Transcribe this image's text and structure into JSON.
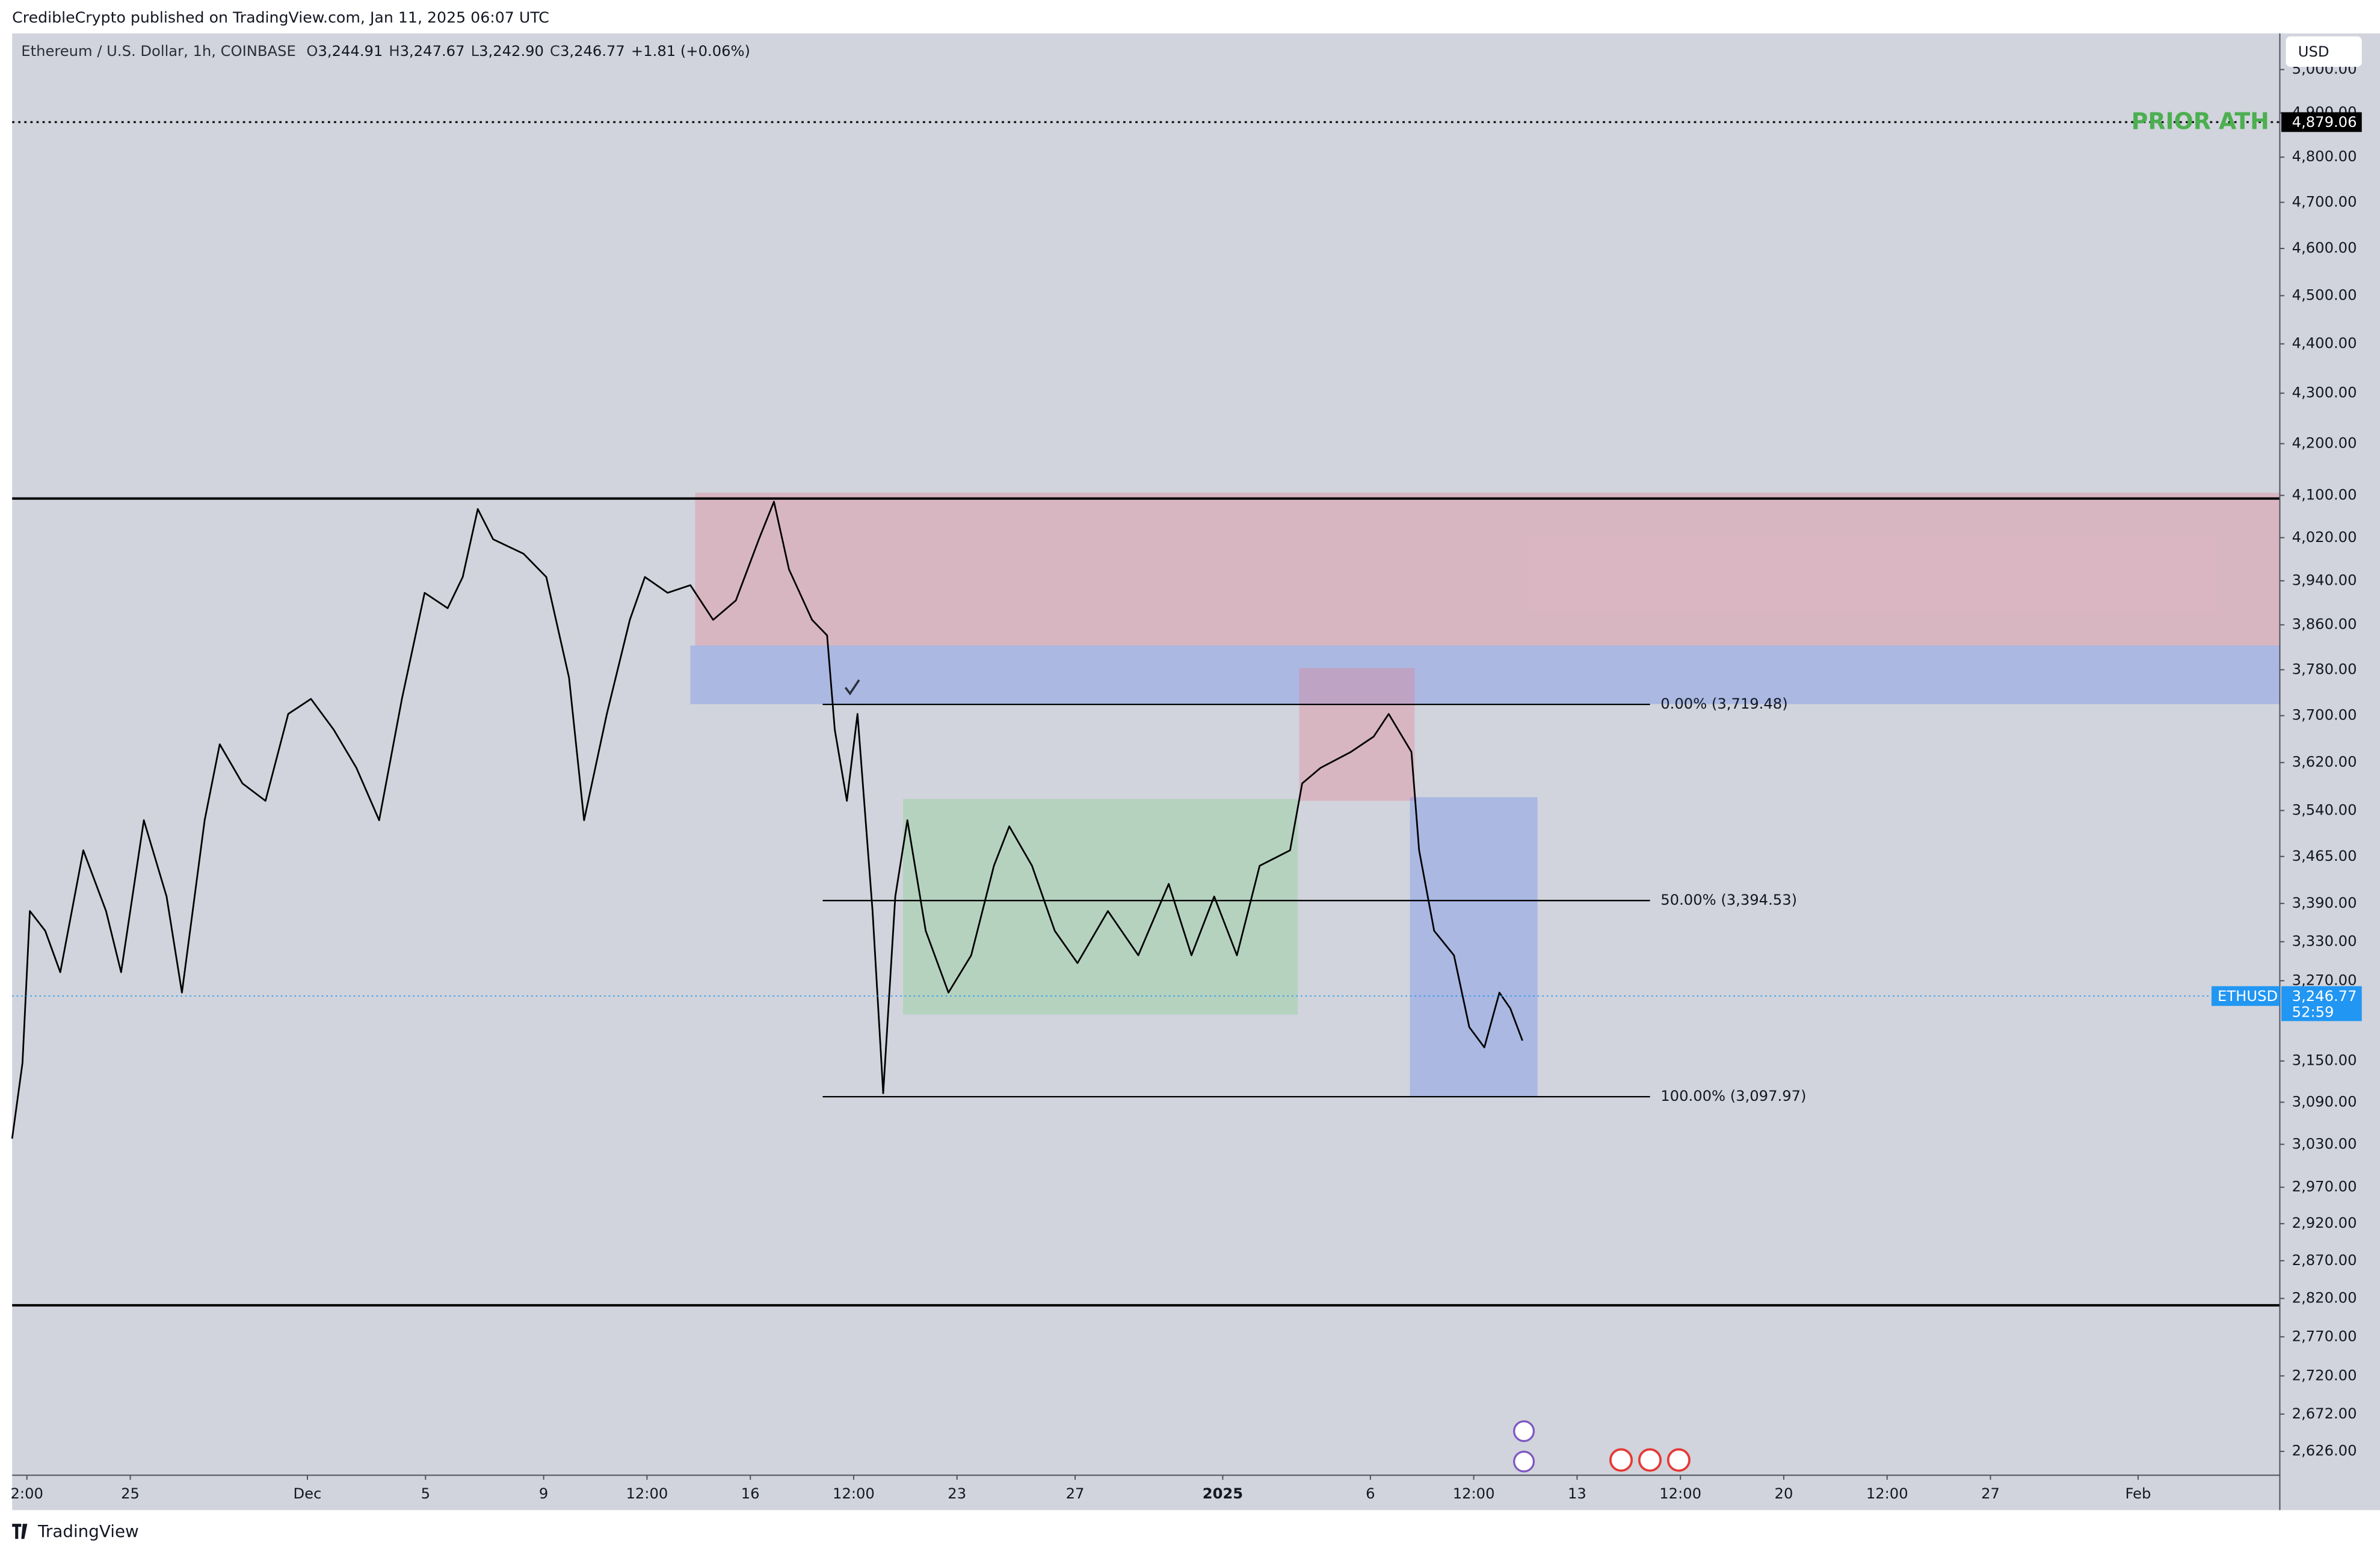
{
  "header": {
    "text": "CredibleCrypto published on TradingView.com, Jan 11, 2025 06:07 UTC"
  },
  "footer": {
    "brand": "TradingView"
  },
  "chart_data": {
    "type": "line",
    "title": "Ethereum / U.S. Dollar, 1h, COINBASE",
    "ohlc": [
      {
        "key": "O",
        "value": 3244.91,
        "label": "3,244.91"
      },
      {
        "key": "H",
        "value": 3247.67,
        "label": "3,247.67"
      },
      {
        "key": "L",
        "value": 3242.9,
        "label": "3,242.90"
      },
      {
        "key": "C",
        "value": 3246.77,
        "label": "3,246.77"
      }
    ],
    "change": {
      "value": 1.81,
      "label": "+1.81 (+0.06%)"
    },
    "currency": "USD",
    "log_scale": true,
    "xlim": [
      21.0,
      97.8
    ],
    "ylim": [
      2597,
      5085
    ],
    "xticks": [
      {
        "value": 21.5,
        "label": "2:00"
      },
      25,
      {
        "value": 31,
        "label": "Dec"
      },
      {
        "value": 35,
        "label": "5"
      },
      {
        "value": 39,
        "label": "9"
      },
      {
        "value": 42.5,
        "label": "12:00"
      },
      {
        "value": 46,
        "label": "16"
      },
      {
        "value": 49.5,
        "label": "12:00"
      },
      {
        "value": 53,
        "label": "23"
      },
      {
        "value": 57,
        "label": "27"
      },
      {
        "value": 62,
        "label": "2025"
      },
      {
        "value": 67,
        "label": "6"
      },
      {
        "value": 70.5,
        "label": "12:00"
      },
      {
        "value": 74,
        "label": "13"
      },
      {
        "value": 77.5,
        "label": "12:00"
      },
      {
        "value": 81,
        "label": "20"
      },
      {
        "value": 84.5,
        "label": "12:00"
      },
      {
        "value": 88,
        "label": "27"
      },
      {
        "value": 93,
        "label": "Feb"
      }
    ],
    "yticks": [
      {
        "value": 5000,
        "label": "5,000.00"
      },
      {
        "value": 4900,
        "label": "4,900.00"
      },
      {
        "value": 4800,
        "label": "4,800.00"
      },
      {
        "value": 4700,
        "label": "4,700.00"
      },
      {
        "value": 4600,
        "label": "4,600.00"
      },
      {
        "value": 4500,
        "label": "4,500.00"
      },
      {
        "value": 4400,
        "label": "4,400.00"
      },
      {
        "value": 4300,
        "label": "4,300.00"
      },
      {
        "value": 4200,
        "label": "4,200.00"
      },
      {
        "value": 4100,
        "label": "4,100.00"
      },
      {
        "value": 4020,
        "label": "4,020.00"
      },
      {
        "value": 3940,
        "label": "3,940.00"
      },
      {
        "value": 3860,
        "label": "3,860.00"
      },
      {
        "value": 3780,
        "label": "3,780.00"
      },
      {
        "value": 3700,
        "label": "3,700.00"
      },
      {
        "value": 3620,
        "label": "3,620.00"
      },
      {
        "value": 3540,
        "label": "3,540.00"
      },
      {
        "value": 3465,
        "label": "3,465.00"
      },
      {
        "value": 3390,
        "label": "3,390.00"
      },
      {
        "value": 3330,
        "label": "3,330.00"
      },
      {
        "value": 3270,
        "label": "3,270.00"
      },
      {
        "value": 3150,
        "label": "3,150.00"
      },
      {
        "value": 3090,
        "label": "3,090.00"
      },
      {
        "value": 3030,
        "label": "3,030.00"
      },
      {
        "value": 2970,
        "label": "2,970.00"
      },
      {
        "value": 2920,
        "label": "2,920.00"
      },
      {
        "value": 2870,
        "label": "2,870.00"
      },
      {
        "value": 2820,
        "label": "2,820.00"
      },
      {
        "value": 2770,
        "label": "2,770.00"
      },
      {
        "value": 2720,
        "label": "2,720.00"
      },
      {
        "value": 2672,
        "label": "2,672.00"
      },
      {
        "value": 2626,
        "label": "2,626.00"
      }
    ],
    "x": [
      21.0,
      21.35,
      21.6,
      22.12,
      22.63,
      23.41,
      24.18,
      24.69,
      25.46,
      26.23,
      26.75,
      27.52,
      28.03,
      28.8,
      29.58,
      30.35,
      31.12,
      31.89,
      32.66,
      33.43,
      34.2,
      34.97,
      35.75,
      36.26,
      36.77,
      37.29,
      38.32,
      39.09,
      39.86,
      40.37,
      41.14,
      41.92,
      42.43,
      43.2,
      43.97,
      44.74,
      45.51,
      46.29,
      46.8,
      47.31,
      48.09,
      48.6,
      48.86,
      49.27,
      49.63,
      50.14,
      50.5,
      50.91,
      51.32,
      51.94,
      52.71,
      53.48,
      54.25,
      54.77,
      55.54,
      56.31,
      57.08,
      58.11,
      59.14,
      60.17,
      60.94,
      61.71,
      62.48,
      63.25,
      64.28,
      64.69,
      65.31,
      66.34,
      67.11,
      67.62,
      68.39,
      68.65,
      69.16,
      69.83,
      70.35,
      70.86,
      71.37,
      71.74,
      72.15
    ],
    "series": [
      {
        "name": "ETHUSD",
        "color": "#000000",
        "values": [
          3038,
          3147,
          3378,
          3347,
          3283,
          3475,
          3378,
          3283,
          3524,
          3401,
          3252,
          3524,
          3651,
          3585,
          3556,
          3703,
          3729,
          3676,
          3611,
          3524,
          3729,
          3918,
          3890,
          3947,
          4074,
          4017,
          3990,
          3947,
          3766,
          3524,
          3703,
          3869,
          3947,
          3918,
          3932,
          3869,
          3904,
          4017,
          4088,
          3961,
          3869,
          3841,
          3676,
          3556,
          3703,
          3378,
          3103,
          3401,
          3524,
          3347,
          3252,
          3309,
          3450,
          3514,
          3450,
          3347,
          3297,
          3378,
          3309,
          3421,
          3309,
          3401,
          3309,
          3450,
          3475,
          3585,
          3611,
          3638,
          3664,
          3703,
          3638,
          3475,
          3347,
          3309,
          3200,
          3170,
          3252,
          3228,
          3180
        ]
      }
    ],
    "last": {
      "value": 3246.77,
      "label": "3,246.77",
      "countdown": "52:59"
    },
    "prior_ath": {
      "value": 4879.06,
      "label": "4,879.06",
      "text": "PRIOR ATH",
      "color": "#4caf50"
    },
    "levels": [
      {
        "value": 4094
      },
      {
        "value": 2811
      }
    ],
    "fib_x": [
      48.45,
      76.47
    ],
    "fib_levels": [
      {
        "value": 3719.48,
        "label": "0.00% (3,719.48)"
      },
      {
        "value": 3394.53,
        "label": "50.00% (3,394.53)"
      },
      {
        "value": 3097.97,
        "label": "100.00% (3,097.97)"
      }
    ],
    "zones": [
      {
        "x1": 44.13,
        "x2": 97.8,
        "top": 4105,
        "bottom": 3823,
        "color": "#e8798d"
      },
      {
        "x1": 43.97,
        "x2": 97.8,
        "top": 3823,
        "bottom": 3720,
        "color": "#5b80f0"
      },
      {
        "x1": 51.17,
        "x2": 64.54,
        "top": 3559,
        "bottom": 3219,
        "color": "#7ccf86"
      },
      {
        "x1": 64.59,
        "x2": 68.5,
        "top": 3783,
        "bottom": 3556,
        "color": "#e8798d"
      },
      {
        "x1": 68.34,
        "x2": 72.66,
        "top": 3562,
        "bottom": 3098,
        "color": "#5b80f0"
      }
    ]
  }
}
